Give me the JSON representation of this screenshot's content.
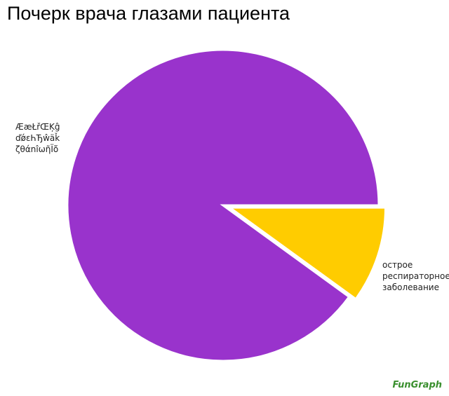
{
  "chart_data": {
    "type": "pie",
    "title": "Почерк врача глазами пациента",
    "categories": [
      "ÆæŁřŒĶĝ ďǿεҺЂŵäǩ ζθάnîωῆЇὄ",
      "острое респираторное заболевание"
    ],
    "values": [
      90,
      10
    ],
    "colors": [
      "#9933cc",
      "#ffcc00"
    ],
    "exploded": [
      false,
      true
    ]
  },
  "watermark": "FunGraph"
}
